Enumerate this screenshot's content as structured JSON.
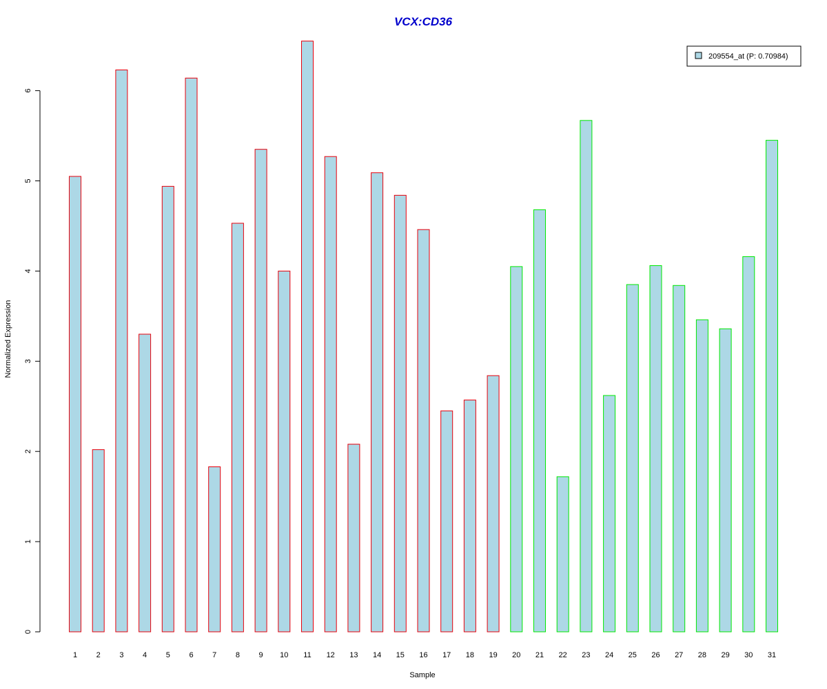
{
  "chart_data": {
    "type": "bar",
    "title": "VCX:CD36",
    "xlabel": "Sample",
    "ylabel": "Normalized Expression",
    "categories": [
      "1",
      "2",
      "3",
      "4",
      "5",
      "6",
      "7",
      "8",
      "9",
      "10",
      "11",
      "12",
      "13",
      "14",
      "15",
      "16",
      "17",
      "18",
      "19",
      "20",
      "21",
      "22",
      "23",
      "24",
      "25",
      "26",
      "27",
      "28",
      "29",
      "30",
      "31"
    ],
    "series": [
      {
        "name": "209554_at (P: 0.70984)",
        "values": [
          5.05,
          2.02,
          6.23,
          3.3,
          4.94,
          6.14,
          1.83,
          4.53,
          5.35,
          4.0,
          6.55,
          5.27,
          2.08,
          5.09,
          4.84,
          4.46,
          2.45,
          2.57,
          2.84,
          4.05,
          4.68,
          1.72,
          5.67,
          2.62,
          3.85,
          4.06,
          3.84,
          3.46,
          3.36,
          4.16,
          5.45
        ]
      }
    ],
    "groups": [
      {
        "range": [
          1,
          19
        ],
        "border_color": "#e8000b"
      },
      {
        "range": [
          20,
          31
        ],
        "border_color": "#00e800"
      }
    ],
    "bar_fill": "#add8e6",
    "title_color": "#0000cc",
    "yticks": [
      0,
      1,
      2,
      3,
      4,
      5,
      6
    ],
    "ylim": [
      0,
      6.6
    ],
    "grid": false,
    "legend_position": "top-right"
  }
}
